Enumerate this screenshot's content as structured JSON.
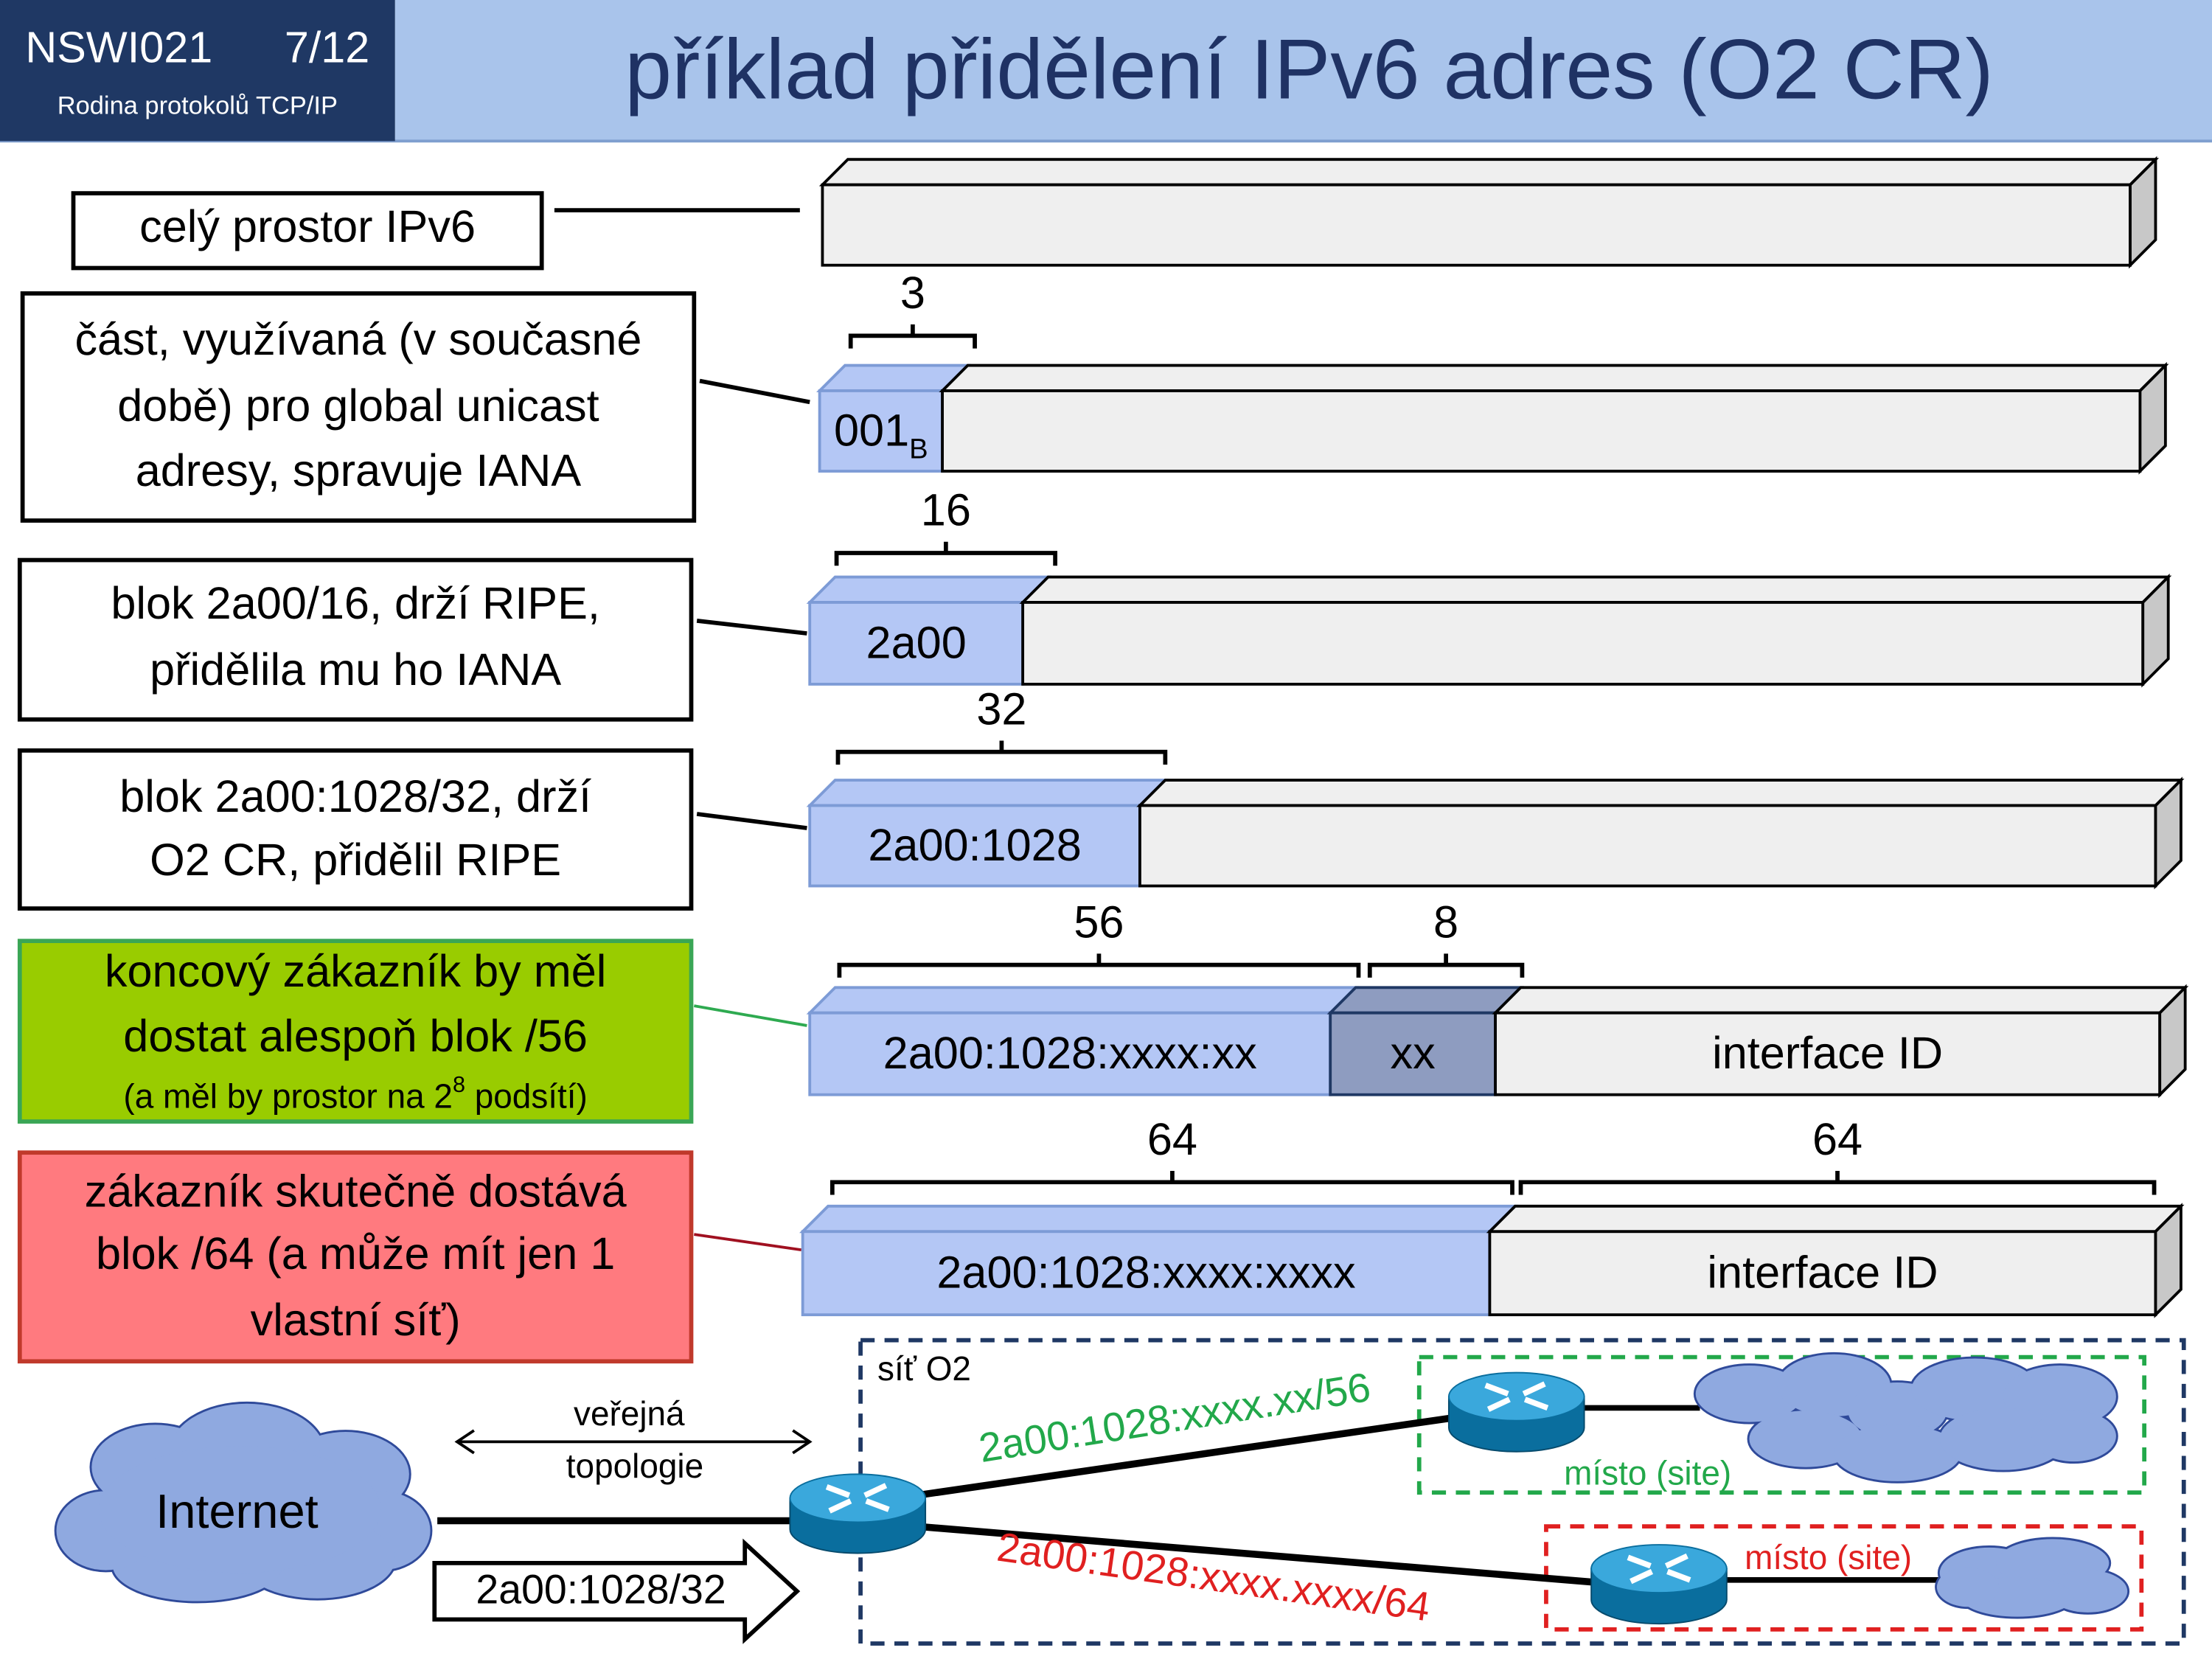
{
  "header": {
    "course": "NSWI021",
    "page": "7/12",
    "subtitle": "Rodina protokolů TCP/IP",
    "title": "příklad přidělení IPv6 adres (O2 CR)"
  },
  "rows": [
    {
      "label": [
        "celý prostor IPv6"
      ]
    },
    {
      "label": [
        "část, využívaná (v současné",
        "době) pro global unicast",
        "adresy, spravuje IANA"
      ],
      "segments": [
        {
          "text": "001",
          "sub": "B"
        }
      ],
      "braces": [
        "3"
      ]
    },
    {
      "label": [
        "blok 2a00/16, drží RIPE,",
        "přidělila mu ho IANA"
      ],
      "segments": [
        {
          "text": "2a00"
        }
      ],
      "braces": [
        "16"
      ]
    },
    {
      "label": [
        "blok 2a00:1028/32, drží",
        "O2 CR, přidělil RIPE"
      ],
      "segments": [
        {
          "text": "2a00:1028"
        }
      ],
      "braces": [
        "32"
      ]
    },
    {
      "label": [
        "koncový zákazník by měl",
        "dostat alespoň blok /56"
      ],
      "note": {
        "text": "(a měl by prostor na 2",
        "sup": "8",
        "tail": " podsítí)"
      },
      "segments": [
        {
          "text": "2a00:1028:xxxx:xx"
        },
        {
          "text": "xx"
        },
        {
          "text": "interface ID"
        }
      ],
      "braces": [
        "56",
        "8"
      ]
    },
    {
      "label": [
        "zákazník skutečně dostává",
        "blok /64 (a může mít jen 1",
        "vlastní síť)"
      ],
      "segments": [
        {
          "text": "2a00:1028:xxxx:xxxx"
        },
        {
          "text": "interface ID"
        }
      ],
      "braces": [
        "64",
        "64"
      ]
    }
  ],
  "network": {
    "cloud": "Internet",
    "arrow_caption": [
      "veřejná",
      "topologie"
    ],
    "announced": "2a00:1028/32",
    "area": "síť O2",
    "link56": "2a00:1028:xxxx.xx/56",
    "link64": "2a00:1028:xxxx.xxxx/64",
    "site56": "místo (site)",
    "site64": "místo (site)"
  }
}
